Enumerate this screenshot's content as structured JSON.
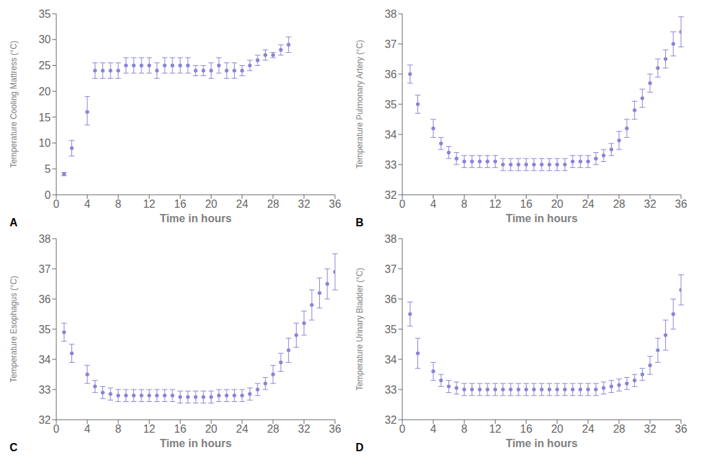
{
  "chart_data": [
    {
      "type": "scatter",
      "title": "A",
      "xlabel": "Time in hours",
      "ylabel": "Temperature Cooling Mattress (°C)",
      "color": "#8884d8",
      "xlim": [
        0,
        36
      ],
      "xticks": [
        0,
        4,
        8,
        12,
        16,
        20,
        24,
        28,
        32,
        36
      ],
      "ylim": [
        0,
        35
      ],
      "yticks": [
        0,
        5,
        10,
        15,
        20,
        25,
        30,
        35
      ],
      "x": [
        1,
        2,
        4,
        5,
        6,
        7,
        8,
        9,
        10,
        11,
        12,
        13,
        14,
        15,
        16,
        17,
        18,
        19,
        20,
        21,
        22,
        23,
        24,
        25,
        26,
        27,
        28,
        29,
        30
      ],
      "values": [
        4,
        9,
        16,
        24,
        24,
        24,
        24,
        25,
        25,
        25,
        25,
        24,
        25,
        25,
        25,
        25,
        24,
        24,
        24,
        25,
        24,
        24,
        24,
        25,
        26,
        27,
        27,
        28,
        29
      ],
      "yerr_lo": [
        0.3,
        1.5,
        2.5,
        1.5,
        1.5,
        1.5,
        1.5,
        1.5,
        1.5,
        1.5,
        1.5,
        1.5,
        1.5,
        1.5,
        1.5,
        1.5,
        1.0,
        1.0,
        1.5,
        1.5,
        1.5,
        1.5,
        1.0,
        1.0,
        1.0,
        1.0,
        0.5,
        1.0,
        1.5
      ],
      "yerr_hi": [
        0.3,
        1.5,
        3.0,
        1.5,
        1.5,
        1.5,
        1.5,
        1.5,
        1.5,
        1.5,
        1.5,
        1.5,
        1.5,
        1.5,
        1.5,
        1.5,
        1.0,
        1.0,
        1.5,
        1.5,
        1.5,
        1.5,
        1.0,
        1.0,
        1.0,
        1.0,
        0.5,
        1.0,
        1.5
      ]
    },
    {
      "type": "scatter",
      "title": "B",
      "xlabel": "Time in hours",
      "ylabel": "Temperature Pulmonary Artery (°C)",
      "color": "#8884d8",
      "xlim": [
        0,
        36
      ],
      "xticks": [
        0,
        4,
        8,
        12,
        16,
        20,
        24,
        28,
        32,
        36
      ],
      "ylim": [
        32,
        38
      ],
      "yticks": [
        32,
        33,
        34,
        35,
        36,
        37,
        38
      ],
      "x": [
        1,
        2,
        4,
        5,
        6,
        7,
        8,
        9,
        10,
        11,
        12,
        13,
        14,
        15,
        16,
        17,
        18,
        19,
        20,
        21,
        22,
        23,
        24,
        25,
        26,
        27,
        28,
        29,
        30,
        31,
        32,
        33,
        34,
        35,
        36
      ],
      "values": [
        36.0,
        35.0,
        34.2,
        33.7,
        33.4,
        33.2,
        33.1,
        33.1,
        33.1,
        33.1,
        33.1,
        33.0,
        33.0,
        33.0,
        33.0,
        33.0,
        33.0,
        33.0,
        33.0,
        33.0,
        33.1,
        33.1,
        33.1,
        33.2,
        33.3,
        33.5,
        33.8,
        34.2,
        34.8,
        35.2,
        35.7,
        36.2,
        36.5,
        37.0,
        37.4
      ],
      "yerr_lo": [
        0.3,
        0.3,
        0.3,
        0.2,
        0.2,
        0.2,
        0.2,
        0.2,
        0.2,
        0.2,
        0.2,
        0.2,
        0.2,
        0.2,
        0.2,
        0.2,
        0.2,
        0.2,
        0.2,
        0.2,
        0.2,
        0.2,
        0.2,
        0.2,
        0.2,
        0.2,
        0.3,
        0.3,
        0.3,
        0.3,
        0.3,
        0.3,
        0.3,
        0.4,
        0.5
      ],
      "yerr_hi": [
        0.3,
        0.3,
        0.3,
        0.2,
        0.2,
        0.2,
        0.2,
        0.2,
        0.2,
        0.2,
        0.2,
        0.2,
        0.2,
        0.2,
        0.2,
        0.2,
        0.2,
        0.2,
        0.2,
        0.2,
        0.2,
        0.2,
        0.2,
        0.2,
        0.2,
        0.2,
        0.3,
        0.3,
        0.3,
        0.3,
        0.3,
        0.3,
        0.3,
        0.4,
        0.5
      ]
    },
    {
      "type": "scatter",
      "title": "C",
      "xlabel": "Time in hours",
      "ylabel": "Temperature Esophagus (°C)",
      "color": "#8884d8",
      "xlim": [
        0,
        36
      ],
      "xticks": [
        0,
        4,
        8,
        12,
        16,
        20,
        24,
        28,
        32,
        36
      ],
      "ylim": [
        32,
        38
      ],
      "yticks": [
        32,
        33,
        34,
        35,
        36,
        37,
        38
      ],
      "x": [
        1,
        2,
        4,
        5,
        6,
        7,
        8,
        9,
        10,
        11,
        12,
        13,
        14,
        15,
        16,
        17,
        18,
        19,
        20,
        21,
        22,
        23,
        24,
        25,
        26,
        27,
        28,
        29,
        30,
        31,
        32,
        33,
        34,
        35,
        36
      ],
      "values": [
        34.9,
        34.2,
        33.5,
        33.1,
        32.9,
        32.85,
        32.8,
        32.8,
        32.8,
        32.8,
        32.8,
        32.8,
        32.8,
        32.8,
        32.75,
        32.75,
        32.75,
        32.75,
        32.75,
        32.8,
        32.8,
        32.8,
        32.8,
        32.85,
        33.0,
        33.2,
        33.5,
        33.9,
        34.3,
        34.8,
        35.2,
        35.8,
        36.2,
        36.5,
        36.9
      ],
      "yerr_lo": [
        0.3,
        0.3,
        0.3,
        0.2,
        0.2,
        0.2,
        0.2,
        0.2,
        0.2,
        0.2,
        0.2,
        0.2,
        0.2,
        0.2,
        0.2,
        0.2,
        0.2,
        0.2,
        0.2,
        0.2,
        0.2,
        0.2,
        0.2,
        0.2,
        0.2,
        0.2,
        0.3,
        0.3,
        0.4,
        0.4,
        0.4,
        0.5,
        0.5,
        0.5,
        0.6
      ],
      "yerr_hi": [
        0.3,
        0.3,
        0.3,
        0.2,
        0.2,
        0.2,
        0.2,
        0.2,
        0.2,
        0.2,
        0.2,
        0.2,
        0.2,
        0.2,
        0.2,
        0.2,
        0.2,
        0.2,
        0.2,
        0.2,
        0.2,
        0.2,
        0.2,
        0.2,
        0.2,
        0.2,
        0.3,
        0.3,
        0.4,
        0.4,
        0.4,
        0.5,
        0.5,
        0.5,
        0.6
      ]
    },
    {
      "type": "scatter",
      "title": "D",
      "xlabel": "Time in hours",
      "ylabel": "Temperature Urinary Bladder (°C)",
      "color": "#8884d8",
      "xlim": [
        0,
        36
      ],
      "xticks": [
        0,
        4,
        8,
        12,
        16,
        20,
        24,
        28,
        32,
        36
      ],
      "ylim": [
        32,
        38
      ],
      "yticks": [
        32,
        33,
        34,
        35,
        36,
        37,
        38
      ],
      "x": [
        1,
        2,
        4,
        5,
        6,
        7,
        8,
        9,
        10,
        11,
        12,
        13,
        14,
        15,
        16,
        17,
        18,
        19,
        20,
        21,
        22,
        23,
        24,
        25,
        26,
        27,
        28,
        29,
        30,
        31,
        32,
        33,
        34,
        35,
        36
      ],
      "values": [
        35.5,
        34.2,
        33.6,
        33.3,
        33.1,
        33.05,
        33.0,
        33.0,
        33.0,
        33.0,
        33.0,
        33.0,
        33.0,
        33.0,
        33.0,
        33.0,
        33.0,
        33.0,
        33.0,
        33.0,
        33.0,
        33.0,
        33.0,
        33.0,
        33.05,
        33.1,
        33.15,
        33.2,
        33.3,
        33.5,
        33.8,
        34.3,
        34.8,
        35.5,
        36.3
      ],
      "yerr_lo": [
        0.4,
        0.5,
        0.3,
        0.2,
        0.2,
        0.2,
        0.2,
        0.2,
        0.2,
        0.2,
        0.2,
        0.2,
        0.2,
        0.2,
        0.2,
        0.2,
        0.2,
        0.2,
        0.2,
        0.2,
        0.2,
        0.2,
        0.2,
        0.2,
        0.2,
        0.2,
        0.2,
        0.2,
        0.2,
        0.2,
        0.3,
        0.4,
        0.5,
        0.5,
        0.5
      ],
      "yerr_hi": [
        0.4,
        0.5,
        0.3,
        0.2,
        0.2,
        0.2,
        0.2,
        0.2,
        0.2,
        0.2,
        0.2,
        0.2,
        0.2,
        0.2,
        0.2,
        0.2,
        0.2,
        0.2,
        0.2,
        0.2,
        0.2,
        0.2,
        0.2,
        0.2,
        0.2,
        0.2,
        0.2,
        0.2,
        0.2,
        0.2,
        0.3,
        0.4,
        0.5,
        0.5,
        0.5
      ]
    }
  ]
}
